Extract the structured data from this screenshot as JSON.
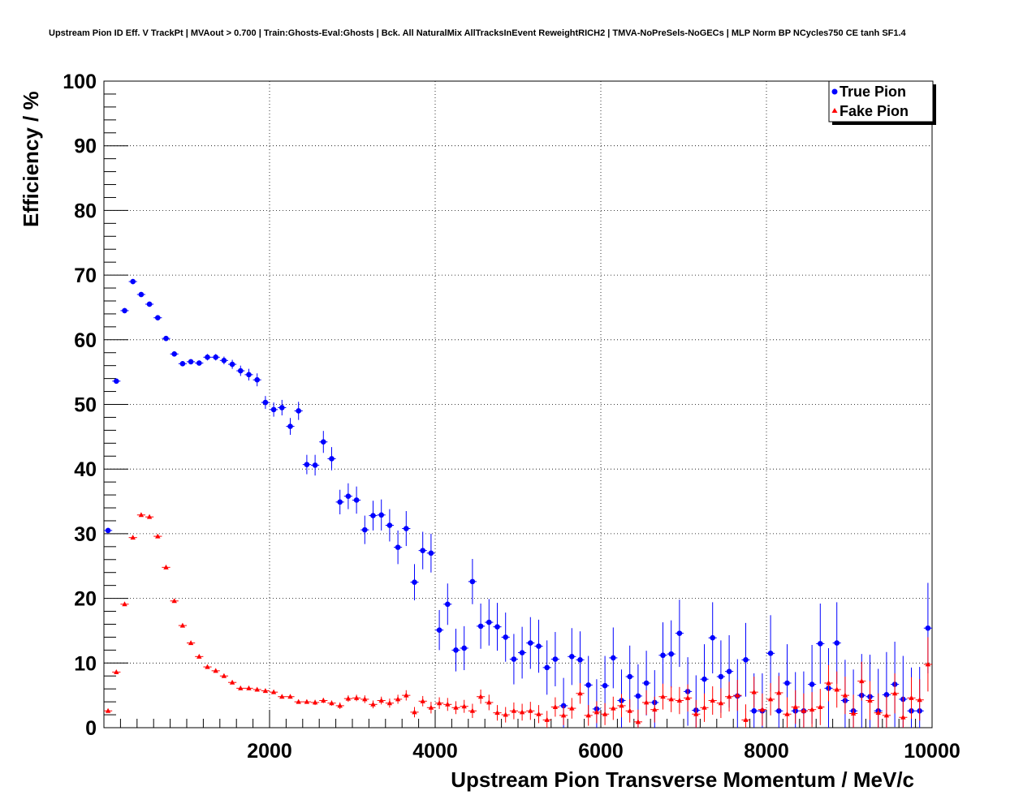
{
  "chart_data": {
    "type": "scatter",
    "title": "Upstream Pion ID Eff. V TrackPt | MVAout > 0.700 | Train:Ghosts-Eval:Ghosts | Bck. All NaturalMix AllTracksInEvent ReweightRICH2 | TMVA-NoPreSels-NoGECs | MLP Norm BP NCycles750 CE tanh SF1.4",
    "xlabel": "Upstream Pion Transverse Momentum / MeV/c",
    "ylabel": "Efficiency / %",
    "xlim": [
      0,
      10000
    ],
    "ylim": [
      0,
      100
    ],
    "x_ticks": [
      2000,
      4000,
      6000,
      8000,
      10000
    ],
    "x_tick_labels": [
      "2000",
      "4000",
      "6000",
      "8000",
      "10000"
    ],
    "y_ticks": [
      0,
      10,
      20,
      30,
      40,
      50,
      60,
      70,
      80,
      90,
      100
    ],
    "y_tick_labels": [
      "0",
      "10",
      "20",
      "30",
      "40",
      "50",
      "60",
      "70",
      "80",
      "90",
      "100"
    ],
    "grid": true,
    "legend_position": "top-right",
    "series": [
      {
        "name": "True Pion",
        "color": "#0000ff",
        "marker": "circle",
        "points": [
          [
            50,
            30.5,
            0.4
          ],
          [
            150,
            53.6,
            0.4
          ],
          [
            250,
            64.5,
            0.4
          ],
          [
            350,
            69.0,
            0.4
          ],
          [
            450,
            67.0,
            0.4
          ],
          [
            550,
            65.5,
            0.4
          ],
          [
            650,
            63.4,
            0.4
          ],
          [
            750,
            60.2,
            0.4
          ],
          [
            850,
            57.8,
            0.4
          ],
          [
            950,
            56.3,
            0.4
          ],
          [
            1050,
            56.6,
            0.4
          ],
          [
            1150,
            56.4,
            0.4
          ],
          [
            1250,
            57.3,
            0.5
          ],
          [
            1350,
            57.3,
            0.5
          ],
          [
            1450,
            56.8,
            0.6
          ],
          [
            1550,
            56.2,
            0.7
          ],
          [
            1650,
            55.2,
            0.8
          ],
          [
            1750,
            54.6,
            0.9
          ],
          [
            1850,
            53.8,
            1.0
          ],
          [
            1950,
            50.3,
            1.0
          ],
          [
            2050,
            49.2,
            1.1
          ],
          [
            2150,
            49.5,
            1.2
          ],
          [
            2250,
            46.6,
            1.3
          ],
          [
            2350,
            49.0,
            1.4
          ],
          [
            2450,
            40.7,
            1.5
          ],
          [
            2550,
            40.6,
            1.6
          ],
          [
            2650,
            44.2,
            1.7
          ],
          [
            2750,
            41.6,
            1.8
          ],
          [
            2850,
            34.9,
            1.9
          ],
          [
            2950,
            35.8,
            2.0
          ],
          [
            3050,
            35.2,
            2.1
          ],
          [
            3150,
            30.6,
            2.2
          ],
          [
            3250,
            32.8,
            2.3
          ],
          [
            3350,
            32.9,
            2.4
          ],
          [
            3450,
            31.3,
            2.5
          ],
          [
            3550,
            27.9,
            2.6
          ],
          [
            3650,
            30.8,
            2.7
          ],
          [
            3750,
            22.5,
            2.8
          ],
          [
            3850,
            27.4,
            2.9
          ],
          [
            3950,
            27.0,
            3.0
          ],
          [
            4050,
            15.1,
            3.1
          ],
          [
            4150,
            19.1,
            3.2
          ],
          [
            4250,
            12.0,
            3.3
          ],
          [
            4350,
            12.3,
            3.4
          ],
          [
            4450,
            22.6,
            3.5
          ],
          [
            4550,
            15.7,
            3.5
          ],
          [
            4650,
            16.3,
            3.6
          ],
          [
            4750,
            15.6,
            3.7
          ],
          [
            4850,
            14.0,
            3.8
          ],
          [
            4950,
            10.6,
            3.9
          ],
          [
            5050,
            11.6,
            4.0
          ],
          [
            5150,
            13.1,
            4.0
          ],
          [
            5250,
            12.6,
            4.1
          ],
          [
            5350,
            9.3,
            4.2
          ],
          [
            5450,
            10.6,
            4.2
          ],
          [
            5550,
            3.4,
            4.3
          ],
          [
            5650,
            11.0,
            4.4
          ],
          [
            5750,
            10.5,
            4.4
          ],
          [
            5850,
            6.6,
            4.5
          ],
          [
            5950,
            2.9,
            4.6
          ],
          [
            6050,
            6.5,
            4.6
          ],
          [
            6150,
            10.8,
            4.7
          ],
          [
            6250,
            4.2,
            4.8
          ],
          [
            6350,
            7.9,
            4.8
          ],
          [
            6450,
            4.9,
            4.9
          ],
          [
            6550,
            6.9,
            5.0
          ],
          [
            6650,
            3.9,
            5.0
          ],
          [
            6750,
            11.2,
            5.1
          ],
          [
            6850,
            11.4,
            5.2
          ],
          [
            6950,
            14.6,
            5.2
          ],
          [
            7050,
            5.6,
            5.3
          ],
          [
            7150,
            2.7,
            5.4
          ],
          [
            7250,
            7.5,
            5.4
          ],
          [
            7350,
            13.9,
            5.5
          ],
          [
            7450,
            7.9,
            5.6
          ],
          [
            7550,
            8.7,
            5.6
          ],
          [
            7650,
            4.9,
            5.7
          ],
          [
            7750,
            10.5,
            5.7
          ],
          [
            7850,
            2.6,
            5.8
          ],
          [
            7950,
            2.6,
            5.8
          ],
          [
            8050,
            11.5,
            5.9
          ],
          [
            8150,
            2.6,
            5.9
          ],
          [
            8250,
            6.9,
            6.0
          ],
          [
            8350,
            2.6,
            6.0
          ],
          [
            8450,
            2.6,
            6.1
          ],
          [
            8550,
            6.7,
            6.1
          ],
          [
            8650,
            13.0,
            6.2
          ],
          [
            8750,
            6.1,
            6.2
          ],
          [
            8850,
            13.1,
            6.3
          ],
          [
            8950,
            4.2,
            6.3
          ],
          [
            9050,
            2.6,
            6.4
          ],
          [
            9150,
            5.0,
            6.4
          ],
          [
            9250,
            4.8,
            6.5
          ],
          [
            9350,
            2.6,
            6.5
          ],
          [
            9450,
            5.1,
            6.6
          ],
          [
            9550,
            6.7,
            6.6
          ],
          [
            9650,
            4.4,
            6.7
          ],
          [
            9750,
            2.6,
            6.7
          ],
          [
            9850,
            2.6,
            6.8
          ],
          [
            9950,
            15.4,
            7.0
          ]
        ]
      },
      {
        "name": "Fake Pion",
        "color": "#ff0000",
        "marker": "triangle",
        "points": [
          [
            50,
            2.6,
            0.2
          ],
          [
            150,
            8.6,
            0.2
          ],
          [
            250,
            19.1,
            0.2
          ],
          [
            350,
            29.4,
            0.2
          ],
          [
            450,
            32.9,
            0.2
          ],
          [
            550,
            32.6,
            0.2
          ],
          [
            650,
            29.6,
            0.2
          ],
          [
            750,
            24.8,
            0.2
          ],
          [
            850,
            19.6,
            0.2
          ],
          [
            950,
            15.8,
            0.2
          ],
          [
            1050,
            13.1,
            0.2
          ],
          [
            1150,
            11.0,
            0.2
          ],
          [
            1250,
            9.4,
            0.2
          ],
          [
            1350,
            8.8,
            0.2
          ],
          [
            1450,
            8.0,
            0.2
          ],
          [
            1550,
            7.0,
            0.2
          ],
          [
            1650,
            6.1,
            0.2
          ],
          [
            1750,
            6.1,
            0.2
          ],
          [
            1850,
            5.9,
            0.2
          ],
          [
            1950,
            5.7,
            0.3
          ],
          [
            2050,
            5.5,
            0.3
          ],
          [
            2150,
            4.8,
            0.3
          ],
          [
            2250,
            4.8,
            0.3
          ],
          [
            2350,
            4.0,
            0.3
          ],
          [
            2450,
            4.0,
            0.3
          ],
          [
            2550,
            3.9,
            0.4
          ],
          [
            2650,
            4.2,
            0.4
          ],
          [
            2750,
            3.8,
            0.4
          ],
          [
            2850,
            3.4,
            0.5
          ],
          [
            2950,
            4.5,
            0.5
          ],
          [
            3050,
            4.6,
            0.5
          ],
          [
            3150,
            4.4,
            0.6
          ],
          [
            3250,
            3.6,
            0.6
          ],
          [
            3350,
            4.2,
            0.6
          ],
          [
            3450,
            3.8,
            0.7
          ],
          [
            3550,
            4.4,
            0.7
          ],
          [
            3650,
            5.0,
            0.8
          ],
          [
            3750,
            2.4,
            0.8
          ],
          [
            3850,
            4.1,
            0.8
          ],
          [
            3950,
            3.1,
            0.9
          ],
          [
            4050,
            3.8,
            0.9
          ],
          [
            4150,
            3.6,
            1.0
          ],
          [
            4250,
            3.1,
            1.0
          ],
          [
            4350,
            3.3,
            1.0
          ],
          [
            4450,
            2.6,
            1.1
          ],
          [
            4550,
            4.8,
            1.1
          ],
          [
            4650,
            3.9,
            1.2
          ],
          [
            4750,
            2.3,
            1.2
          ],
          [
            4850,
            2.0,
            1.2
          ],
          [
            4950,
            2.6,
            1.3
          ],
          [
            5050,
            2.4,
            1.3
          ],
          [
            5150,
            2.6,
            1.4
          ],
          [
            5250,
            2.1,
            1.4
          ],
          [
            5350,
            1.2,
            1.4
          ],
          [
            5450,
            3.2,
            1.5
          ],
          [
            5550,
            1.9,
            1.5
          ],
          [
            5650,
            3.0,
            1.6
          ],
          [
            5750,
            5.3,
            1.6
          ],
          [
            5850,
            1.9,
            1.6
          ],
          [
            5950,
            2.4,
            1.7
          ],
          [
            6050,
            2.1,
            1.7
          ],
          [
            6150,
            3.0,
            1.8
          ],
          [
            6250,
            3.4,
            1.8
          ],
          [
            6350,
            2.6,
            1.8
          ],
          [
            6450,
            0.9,
            1.9
          ],
          [
            6550,
            3.9,
            1.9
          ],
          [
            6650,
            2.8,
            2.0
          ],
          [
            6750,
            4.8,
            2.0
          ],
          [
            6850,
            4.4,
            2.0
          ],
          [
            6950,
            4.2,
            2.1
          ],
          [
            7050,
            4.6,
            2.1
          ],
          [
            7150,
            2.1,
            2.2
          ],
          [
            7250,
            3.1,
            2.2
          ],
          [
            7350,
            4.2,
            2.2
          ],
          [
            7450,
            3.8,
            2.3
          ],
          [
            7550,
            4.8,
            2.3
          ],
          [
            7650,
            5.0,
            2.4
          ],
          [
            7750,
            1.2,
            2.4
          ],
          [
            7850,
            5.5,
            2.4
          ],
          [
            7950,
            2.8,
            2.5
          ],
          [
            8050,
            4.4,
            2.5
          ],
          [
            8150,
            5.4,
            2.6
          ],
          [
            8250,
            2.1,
            2.6
          ],
          [
            8350,
            3.2,
            2.6
          ],
          [
            8450,
            2.6,
            2.7
          ],
          [
            8550,
            2.8,
            2.7
          ],
          [
            8650,
            3.2,
            2.8
          ],
          [
            8750,
            6.9,
            2.8
          ],
          [
            8850,
            5.9,
            2.8
          ],
          [
            8950,
            5.0,
            2.9
          ],
          [
            9050,
            2.2,
            2.9
          ],
          [
            9150,
            7.2,
            3.0
          ],
          [
            9250,
            4.2,
            3.0
          ],
          [
            9350,
            2.3,
            3.0
          ],
          [
            9450,
            1.9,
            3.1
          ],
          [
            9550,
            5.3,
            3.1
          ],
          [
            9650,
            1.6,
            3.2
          ],
          [
            9750,
            4.6,
            3.2
          ],
          [
            9850,
            4.3,
            3.2
          ],
          [
            9950,
            9.8,
            4.2
          ]
        ]
      }
    ]
  }
}
